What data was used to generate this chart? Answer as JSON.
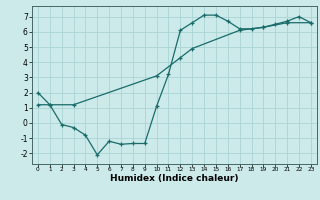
{
  "xlabel": "Humidex (Indice chaleur)",
  "bg_color": "#cceaea",
  "grid_color": "#aad4d4",
  "line_color": "#1a6b6b",
  "xlim": [
    -0.5,
    23.5
  ],
  "ylim": [
    -2.7,
    7.7
  ],
  "yticks": [
    -2,
    -1,
    0,
    1,
    2,
    3,
    4,
    5,
    6,
    7
  ],
  "xticks": [
    0,
    1,
    2,
    3,
    4,
    5,
    6,
    7,
    8,
    9,
    10,
    11,
    12,
    13,
    14,
    15,
    16,
    17,
    18,
    19,
    20,
    21,
    22,
    23
  ],
  "line1_x": [
    0,
    1,
    2,
    3,
    4,
    5,
    6,
    7,
    8,
    9,
    10,
    11,
    12,
    13,
    14,
    15,
    16,
    17,
    18,
    19,
    20,
    21,
    22,
    23
  ],
  "line1_y": [
    2.0,
    1.2,
    -0.1,
    -0.3,
    -0.8,
    -2.1,
    -1.2,
    -1.4,
    -1.35,
    -1.35,
    1.1,
    3.2,
    6.1,
    6.6,
    7.1,
    7.1,
    6.7,
    6.2,
    6.2,
    6.3,
    6.5,
    6.7,
    7.0,
    6.6
  ],
  "line1_markers_x": [
    0,
    1,
    2,
    3,
    4,
    5,
    6,
    7,
    8,
    9,
    10,
    11,
    12,
    13,
    14,
    15,
    16,
    17,
    18,
    19,
    20,
    21,
    22,
    23
  ],
  "line2_x": [
    0,
    1,
    3,
    10,
    12,
    13,
    17,
    19,
    21,
    23
  ],
  "line2_y": [
    1.2,
    1.2,
    1.2,
    3.1,
    4.3,
    4.9,
    6.1,
    6.3,
    6.6,
    6.6
  ],
  "marker": "+"
}
